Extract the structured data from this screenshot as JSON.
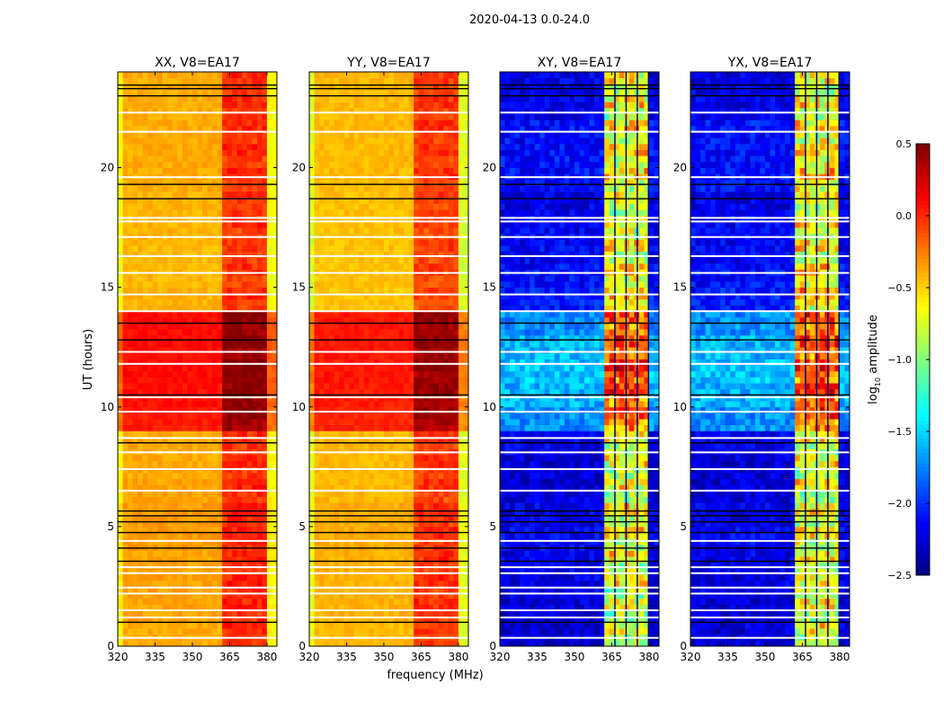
{
  "chart_data": {
    "type": "heatmap",
    "title": "2020-04-13 0.0-24.0",
    "xlabel": "frequency (MHz)",
    "ylabel": "UT (hours)",
    "xlim": [
      320,
      384
    ],
    "ylim": [
      0,
      24
    ],
    "xticks": [
      "320",
      "335",
      "350",
      "365",
      "380"
    ],
    "xtick_values": [
      320,
      335,
      350,
      365,
      380
    ],
    "yticks": [
      "0",
      "5",
      "10",
      "15",
      "20"
    ],
    "ytick_values": [
      0,
      5,
      10,
      15,
      20
    ],
    "colorbar": {
      "label": "log",
      "label_sub": "10",
      "label_rest": " amplitude",
      "range": [
        -2.5,
        0.5
      ],
      "ticks": [
        "0.5",
        "0.0",
        "−0.5",
        "−1.0",
        "−1.5",
        "−2.0",
        "−2.5"
      ],
      "tick_values": [
        0.5,
        0.0,
        -0.5,
        -1.0,
        -1.5,
        -2.0,
        -2.5
      ],
      "colormap": "jet"
    },
    "rfi_band_mhz": [
      362,
      380
    ],
    "rfi_stripes_mhz": [
      366,
      370.5,
      375,
      379.5
    ],
    "flagged_white_hours": [
      0.35,
      1.2,
      1.5,
      2.2,
      2.45,
      3.05,
      3.3,
      4.4,
      6.5,
      7.4,
      8.1,
      8.7,
      9.8,
      10.4,
      11.8,
      12.3,
      14.0,
      14.7,
      15.6,
      16.3,
      17.1,
      17.75,
      17.9,
      19.6,
      21.5,
      22.3
    ],
    "flagged_black_hours": [
      1.0,
      3.55,
      4.1,
      4.75,
      5.2,
      5.45,
      5.65,
      8.5,
      10.5,
      12.8,
      13.5,
      18.7,
      19.3,
      23.0,
      23.3,
      23.45
    ],
    "panels": [
      {
        "title": "XX, V8=EA17",
        "hourly_level": [
          -0.38,
          -0.36,
          -0.35,
          -0.36,
          -0.33,
          -0.33,
          -0.36,
          -0.38,
          -0.38,
          0.05,
          0.08,
          0.1,
          0.1,
          0.1,
          -0.4,
          -0.42,
          -0.42,
          -0.4,
          -0.4,
          -0.38,
          -0.38,
          -0.38,
          -0.38,
          -0.38
        ],
        "rfi_boost": 0.4,
        "edge_drop": 0.25
      },
      {
        "title": "YY, V8=EA17",
        "hourly_level": [
          -0.42,
          -0.4,
          -0.4,
          -0.4,
          -0.38,
          -0.38,
          -0.42,
          -0.42,
          -0.42,
          0.02,
          0.05,
          0.06,
          0.06,
          0.06,
          -0.45,
          -0.45,
          -0.45,
          -0.44,
          -0.44,
          -0.42,
          -0.42,
          -0.42,
          -0.42,
          -0.42
        ],
        "rfi_boost": 0.4,
        "edge_drop": 0.3
      },
      {
        "title": "XY, V8=EA17",
        "hourly_level": [
          -2.25,
          -2.25,
          -2.2,
          -2.2,
          -2.15,
          -2.2,
          -2.25,
          -2.25,
          -2.2,
          -1.7,
          -1.6,
          -1.55,
          -1.6,
          -1.7,
          -2.05,
          -2.1,
          -2.15,
          -2.15,
          -2.2,
          -2.1,
          -2.1,
          -2.1,
          -2.2,
          -2.2
        ],
        "rfi_boost": 1.6,
        "edge_drop": 0.0
      },
      {
        "title": "YX, V8=EA17",
        "hourly_level": [
          -2.25,
          -2.25,
          -2.2,
          -2.2,
          -2.15,
          -2.2,
          -2.25,
          -2.25,
          -2.2,
          -1.7,
          -1.6,
          -1.55,
          -1.6,
          -1.7,
          -2.05,
          -2.1,
          -2.15,
          -2.15,
          -2.2,
          -2.1,
          -2.1,
          -2.1,
          -2.2,
          -2.2
        ],
        "rfi_boost": 1.6,
        "edge_drop": 0.0
      }
    ]
  }
}
